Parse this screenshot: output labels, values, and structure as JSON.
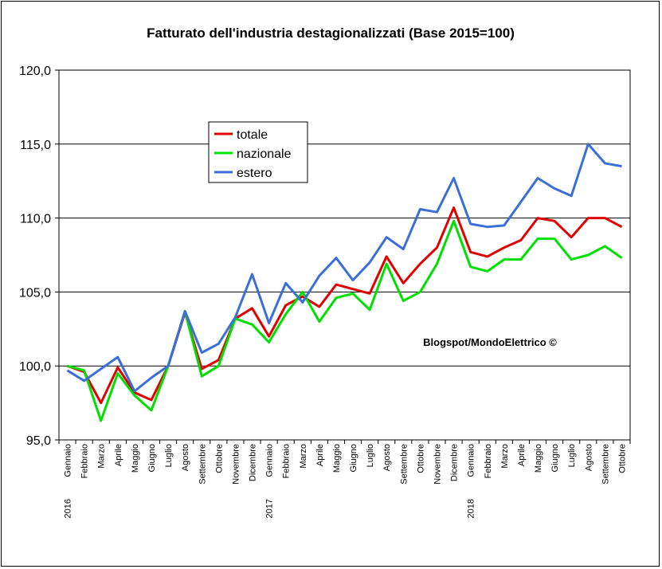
{
  "chart_data": {
    "type": "line",
    "title": "Fatturato dell'industria destagionalizzati   (Base 2015=100)",
    "credit": "Blogspot/MondoElettrico ©",
    "ylim": [
      95,
      120
    ],
    "yticks": [
      "95,0",
      "100,0",
      "105,0",
      "110,0",
      "115,0",
      "120,0"
    ],
    "ytick_values": [
      95,
      100,
      105,
      110,
      115,
      120
    ],
    "categories": [
      "Gennaio",
      "Febbraio",
      "Marzo",
      "Aprile",
      "Maggio",
      "Giugno",
      "Luglio",
      "Agosto",
      "Settembre",
      "Ottobre",
      "Novembre",
      "Dicembre",
      "Gennaio",
      "Febbraio",
      "Marzo",
      "Aprile",
      "Maggio",
      "Giugno",
      "Luglio",
      "Agosto",
      "Settembre",
      "Ottobre",
      "Novembre",
      "Dicembre",
      "Gennaio",
      "Febbraio",
      "Marzo",
      "Aprile",
      "Maggio",
      "Giugno",
      "Luglio",
      "Agosto",
      "Settembre",
      "Ottobre"
    ],
    "years": [
      {
        "label": "2016",
        "index": 0
      },
      {
        "label": "2017",
        "index": 12
      },
      {
        "label": "2018",
        "index": 24
      }
    ],
    "series": [
      {
        "name": "totale",
        "color": "#e00000",
        "values": [
          100.0,
          99.6,
          97.5,
          99.9,
          98.2,
          97.7,
          100.0,
          103.6,
          99.8,
          100.4,
          103.2,
          103.9,
          102.0,
          104.1,
          104.7,
          104.0,
          105.5,
          105.2,
          104.9,
          107.4,
          105.6,
          106.9,
          108.0,
          110.7,
          107.7,
          107.4,
          108.0,
          108.5,
          110.0,
          109.8,
          108.7,
          110.0,
          110.0,
          109.4
        ]
      },
      {
        "name": "nazionale",
        "color": "#00e000",
        "values": [
          100.0,
          99.7,
          96.3,
          99.5,
          98.0,
          97.0,
          100.0,
          103.7,
          99.3,
          100.0,
          103.2,
          102.8,
          101.6,
          103.5,
          105.0,
          103.0,
          104.6,
          104.9,
          103.8,
          106.9,
          104.4,
          105.0,
          106.9,
          109.8,
          106.7,
          106.4,
          107.2,
          107.2,
          108.6,
          108.6,
          107.2,
          107.5,
          108.1,
          107.3
        ]
      },
      {
        "name": "estero",
        "color": "#3a6ed8",
        "values": [
          99.7,
          99.0,
          99.8,
          100.6,
          98.3,
          99.2,
          100.0,
          103.7,
          100.9,
          101.5,
          103.3,
          106.2,
          102.9,
          105.6,
          104.3,
          106.1,
          107.3,
          105.8,
          107.0,
          108.7,
          107.9,
          110.6,
          110.4,
          112.7,
          109.6,
          109.4,
          109.5,
          111.1,
          112.7,
          112.0,
          111.5,
          115.0,
          113.7,
          113.5
        ]
      }
    ]
  }
}
